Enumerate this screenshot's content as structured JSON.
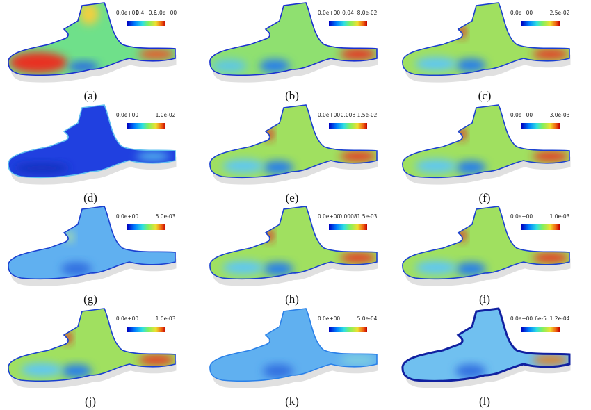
{
  "panels": [
    {
      "label": "(a)",
      "ticks": [
        "0.0e+00",
        "0.4",
        "0.6",
        "1.0e+00"
      ]
    },
    {
      "label": "(b)",
      "ticks": [
        "0.0e+00",
        "0.04",
        "8.0e-02"
      ]
    },
    {
      "label": "(c)",
      "ticks": [
        "0.0e+00",
        "2.5e-02"
      ]
    },
    {
      "label": "(d)",
      "ticks": [
        "0.0e+00",
        "1.0e-02"
      ]
    },
    {
      "label": "(e)",
      "ticks": [
        "0.0e+00",
        "0.008",
        "1.5e-02"
      ]
    },
    {
      "label": "(f)",
      "ticks": [
        "0.0e+00",
        "3.0e-03"
      ]
    },
    {
      "label": "(g)",
      "ticks": [
        "0.0e+00",
        "5.0e-03"
      ]
    },
    {
      "label": "(h)",
      "ticks": [
        "0.0e+00",
        "0.0008",
        "1.5e-03"
      ]
    },
    {
      "label": "(i)",
      "ticks": [
        "0.0e+00",
        "1.0e-03"
      ]
    },
    {
      "label": "(j)",
      "ticks": [
        "0.0e+00",
        "1.0e-03"
      ]
    },
    {
      "label": "(k)",
      "ticks": [
        "0.0e+00",
        "5.0e-04"
      ]
    },
    {
      "label": "(l)",
      "ticks": [
        "0.0e+00",
        "6e-5",
        "1.2e-04"
      ]
    }
  ]
}
